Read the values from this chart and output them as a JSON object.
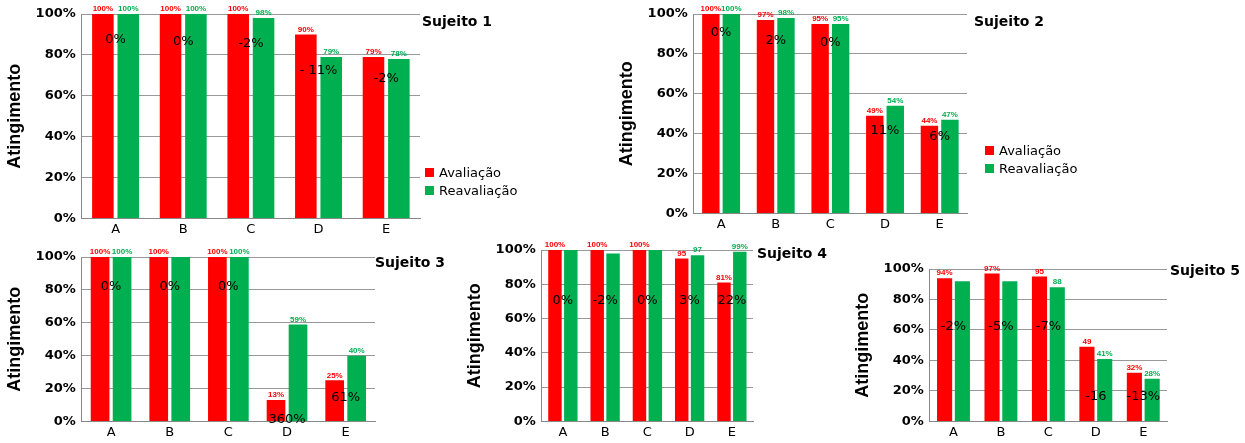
{
  "chart_data": [
    {
      "type": "bar",
      "title": "Sujeito 1",
      "ylabel": "Atingimento",
      "categories": [
        "A",
        "B",
        "C",
        "D",
        "E"
      ],
      "ylim": [
        0,
        100
      ],
      "yticks": [
        {
          "value": 0,
          "label": "0%"
        },
        {
          "value": 20,
          "label": "20%"
        },
        {
          "value": 40,
          "label": "40%"
        },
        {
          "value": 60,
          "label": "60%"
        },
        {
          "value": 80,
          "label": "80%"
        },
        {
          "value": 100,
          "label": "100%"
        }
      ],
      "grid": "y",
      "legend": "right",
      "series": [
        {
          "name": "Avaliação",
          "color": "#ff0000",
          "values": [
            100,
            100,
            100,
            90,
            79
          ],
          "value_labels": [
            "100%",
            "100%",
            "100%",
            "90%",
            "79%"
          ]
        },
        {
          "name": "Reavaliação",
          "color": "#00b050",
          "values": [
            100,
            100,
            98,
            79,
            78
          ],
          "value_labels": [
            "100%",
            "100%",
            "98%",
            "79%",
            "78%"
          ]
        }
      ],
      "annotations": [
        {
          "text": "0%",
          "x": "A",
          "y": 89
        },
        {
          "text": "0%",
          "x": "B",
          "y": 88
        },
        {
          "text": "-2%",
          "x": "C",
          "y": 87
        },
        {
          "text": "- 11%",
          "x": "D",
          "y": 74
        },
        {
          "text": "-2%",
          "x": "E",
          "y": 70
        }
      ]
    },
    {
      "type": "bar",
      "title": "Sujeito 2",
      "ylabel": "Atingimento",
      "categories": [
        "A",
        "B",
        "C",
        "D",
        "E"
      ],
      "ylim": [
        0,
        100
      ],
      "yticks": [
        {
          "value": 0,
          "label": "0%"
        },
        {
          "value": 20,
          "label": "20%"
        },
        {
          "value": 40,
          "label": "40%"
        },
        {
          "value": 60,
          "label": "60%"
        },
        {
          "value": 80,
          "label": "80%"
        },
        {
          "value": 100,
          "label": "100%"
        }
      ],
      "grid": "y",
      "legend": "right",
      "series": [
        {
          "name": "Avaliação",
          "color": "#ff0000",
          "values": [
            100,
            97,
            95,
            49,
            44
          ],
          "value_labels": [
            "100%",
            "97%",
            "95%",
            "49%",
            "44%"
          ]
        },
        {
          "name": "Reavaliação",
          "color": "#00b050",
          "values": [
            100,
            98,
            95,
            54,
            47
          ],
          "value_labels": [
            "100%",
            "98%",
            "95%",
            "54%",
            "47%"
          ]
        }
      ],
      "annotations": [
        {
          "text": "0%",
          "x": "A",
          "y": 92
        },
        {
          "text": "2%",
          "x": "B",
          "y": 88
        },
        {
          "text": "0%",
          "x": "C",
          "y": 87
        },
        {
          "text": "11%",
          "x": "D",
          "y": 43
        },
        {
          "text": "6%",
          "x": "E",
          "y": 40
        }
      ]
    },
    {
      "type": "bar",
      "title": "Sujeito 3",
      "ylabel": "Atingimento",
      "categories": [
        "A",
        "B",
        "C",
        "D",
        "E"
      ],
      "ylim": [
        0,
        100
      ],
      "yticks": [
        {
          "value": 0,
          "label": "0%"
        },
        {
          "value": 20,
          "label": "20%"
        },
        {
          "value": 40,
          "label": "40%"
        },
        {
          "value": 60,
          "label": "60%"
        },
        {
          "value": 80,
          "label": "80%"
        },
        {
          "value": 100,
          "label": "100%"
        }
      ],
      "grid": "y",
      "series": [
        {
          "color": "#ff0000",
          "values": [
            100,
            100,
            100,
            13,
            25
          ],
          "value_labels": [
            "100%",
            "100%",
            "100%",
            "13%",
            "25%"
          ]
        },
        {
          "color": "#00b050",
          "values": [
            100,
            100,
            100,
            59,
            40
          ],
          "value_labels": [
            "100%",
            null,
            "100%",
            "59%",
            "40%"
          ]
        }
      ],
      "annotations": [
        {
          "text": "0%",
          "x": "A",
          "y": 84
        },
        {
          "text": "0%",
          "x": "B",
          "y": 84
        },
        {
          "text": "0%",
          "x": "C",
          "y": 84
        },
        {
          "text": "360%",
          "x": "D",
          "y": 3
        },
        {
          "text": "61%",
          "x": "E",
          "y": 16
        }
      ]
    },
    {
      "type": "bar",
      "title": "Sujeito 4",
      "ylabel": "Atingimento",
      "categories": [
        "A",
        "B",
        "C",
        "D",
        "E"
      ],
      "ylim": [
        0,
        100
      ],
      "yticks": [
        {
          "value": 0,
          "label": "0%"
        },
        {
          "value": 20,
          "label": "20%"
        },
        {
          "value": 40,
          "label": "40%"
        },
        {
          "value": 60,
          "label": "60%"
        },
        {
          "value": 80,
          "label": "80%"
        },
        {
          "value": 100,
          "label": "100%"
        }
      ],
      "grid": "y",
      "series": [
        {
          "color": "#ff0000",
          "values": [
            100,
            100,
            100,
            95,
            81
          ],
          "value_labels": [
            "100%",
            "100%",
            "100%",
            "95",
            "81%"
          ]
        },
        {
          "color": "#00b050",
          "values": [
            100,
            98,
            100,
            97,
            99
          ],
          "value_labels": [
            null,
            null,
            null,
            "97",
            "99%"
          ]
        }
      ],
      "annotations": [
        {
          "text": "0%",
          "x": "A",
          "y": 72
        },
        {
          "text": "-2%",
          "x": "B",
          "y": 72
        },
        {
          "text": "0%",
          "x": "C",
          "y": 72
        },
        {
          "text": "3%",
          "x": "D",
          "y": 72
        },
        {
          "text": "22%",
          "x": "E",
          "y": 72
        }
      ]
    },
    {
      "type": "bar",
      "title": "Sujeito 5",
      "ylabel": "Atingimento",
      "categories": [
        "A",
        "B",
        "C",
        "D",
        "E"
      ],
      "ylim": [
        0,
        100
      ],
      "yticks": [
        {
          "value": 0,
          "label": "0%"
        },
        {
          "value": 20,
          "label": "20%"
        },
        {
          "value": 40,
          "label": "40%"
        },
        {
          "value": 60,
          "label": "60%"
        },
        {
          "value": 80,
          "label": "80%"
        },
        {
          "value": 100,
          "label": "100%"
        }
      ],
      "grid": "y",
      "series": [
        {
          "color": "#ff0000",
          "values": [
            94,
            97,
            95,
            49,
            32
          ],
          "value_labels": [
            "94%",
            "97%",
            "95",
            "49",
            "32%"
          ]
        },
        {
          "color": "#00b050",
          "values": [
            92,
            92,
            88,
            41,
            28
          ],
          "value_labels": [
            null,
            null,
            "88",
            "41%",
            "28%"
          ]
        }
      ],
      "annotations": [
        {
          "text": "-2%",
          "x": "A",
          "y": 64
        },
        {
          "text": "-5%",
          "x": "B",
          "y": 64
        },
        {
          "text": "-7%",
          "x": "C",
          "y": 64
        },
        {
          "text": "-16",
          "x": "D",
          "y": 18
        },
        {
          "text": "-13%",
          "x": "E",
          "y": 18
        }
      ]
    }
  ]
}
